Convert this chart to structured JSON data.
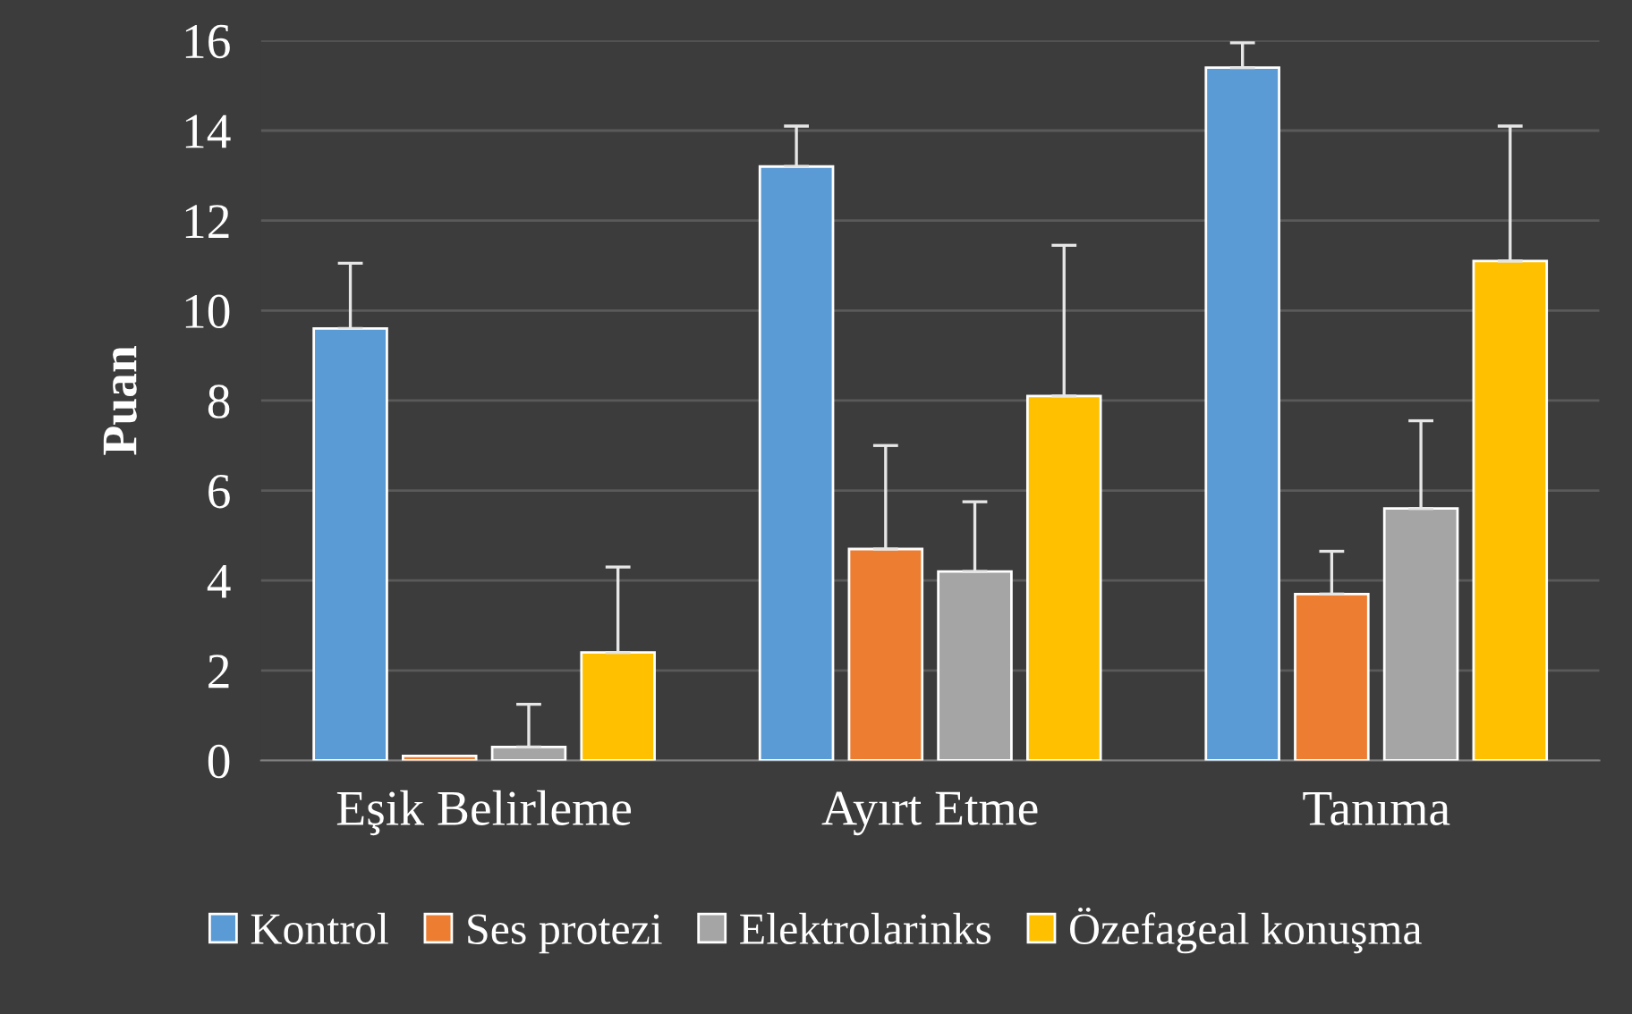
{
  "chart_data": {
    "type": "bar",
    "ylabel": "Puan",
    "categories": [
      "Eşik Belirleme",
      "Ayırt Etme",
      "Tanıma"
    ],
    "series": [
      {
        "name": "Kontrol",
        "color": "#5b9bd5",
        "values": [
          9.6,
          13.2,
          15.4
        ],
        "errors": [
          [
            9.6,
            11.05
          ],
          [
            13.2,
            14.1
          ],
          [
            15.4,
            15.95
          ]
        ]
      },
      {
        "name": "Ses protezi",
        "color": "#ed7d31",
        "values": [
          0.1,
          4.7,
          3.7
        ],
        "errors": [
          null,
          [
            4.7,
            7.0
          ],
          [
            3.7,
            4.65
          ]
        ]
      },
      {
        "name": "Elektrolarinks",
        "color": "#a5a5a5",
        "values": [
          0.3,
          4.2,
          5.6
        ],
        "errors": [
          [
            0.3,
            1.25
          ],
          [
            4.2,
            5.75
          ],
          [
            5.6,
            7.55
          ]
        ]
      },
      {
        "name": "Özefageal konuşma",
        "color": "#ffc000",
        "values": [
          2.4,
          8.1,
          11.1
        ],
        "errors": [
          [
            2.4,
            4.3
          ],
          [
            8.1,
            11.45
          ],
          [
            11.1,
            14.1
          ]
        ]
      }
    ],
    "ylim": [
      0,
      16
    ],
    "yticks": [
      0,
      2,
      4,
      6,
      8,
      10,
      12,
      14,
      16
    ],
    "grid": "y",
    "legend": "bottom"
  }
}
